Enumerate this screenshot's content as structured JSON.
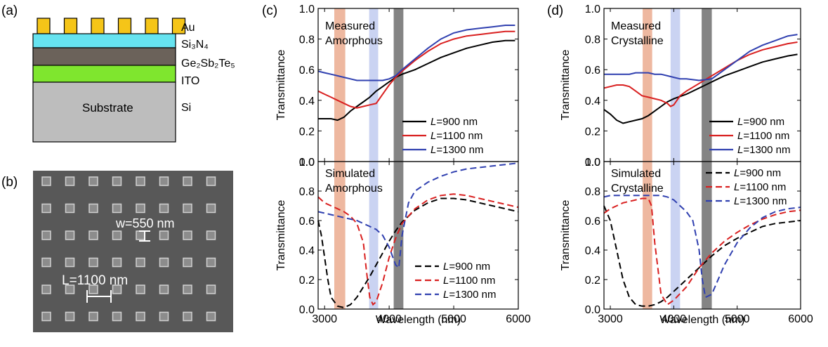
{
  "panel_labels": {
    "a": "(a)",
    "b": "(b)",
    "c": "(c)",
    "d": "(d)"
  },
  "stack": {
    "layers": [
      {
        "label": "Au",
        "color": "#f5c518"
      },
      {
        "label": "Si₃N₄",
        "color": "#66e3f0"
      },
      {
        "label": "Ge₂Sb₂Te₅",
        "color": "#6b625a"
      },
      {
        "label": "ITO",
        "color": "#7fe62e"
      },
      {
        "label": "Si",
        "color": "#bdbdbd"
      }
    ],
    "substrate_text": "Substrate"
  },
  "sem": {
    "w_label": "w=550 nm",
    "l_label": "L=1100 nm",
    "background_color": "#585858",
    "pillar_color": "#a6a6a6"
  },
  "colors": {
    "L900": "#000000",
    "L1100": "#d92020",
    "L1300": "#3040b0",
    "band_orange": "#e8a080",
    "band_blue": "#b8c4ee",
    "band_gray": "#6e6e6e"
  },
  "axes": {
    "xlabel": "Wavelength (nm)",
    "ylabel": "Transmittance",
    "xticks": [
      "3000",
      "4000",
      "5000",
      "6000"
    ],
    "yticks_top": [
      "0.0",
      "0.2",
      "0.4",
      "0.6",
      "0.8",
      "1.0"
    ],
    "yticks_bottom": [
      "0.0",
      "0.2",
      "0.4",
      "0.6",
      "0.8",
      "1.0"
    ]
  },
  "legend_labels": [
    "=900 nm",
    "=1100 nm",
    "=1300 nm"
  ],
  "legend_L": "L",
  "annotations": {
    "c_top": [
      "Measured",
      "Amorphous"
    ],
    "c_bottom": [
      "Simulated",
      "Amorphous"
    ],
    "d_top": [
      "Measured",
      "Crystalline"
    ],
    "d_bottom": [
      "Simulated",
      "Crystalline"
    ]
  },
  "chart_data": [
    {
      "type": "line",
      "panel": "c-measured",
      "xlabel": "",
      "ylabel": "Transmittance",
      "xlim": [
        2900,
        6000
      ],
      "ylim": [
        0,
        1.0
      ],
      "bands": [
        [
          3150,
          3320
        ],
        [
          3690,
          3830
        ],
        [
          4070,
          4220
        ]
      ],
      "series": [
        {
          "name": "L=900 nm",
          "style": "solid",
          "x": [
            2900,
            3000,
            3100,
            3200,
            3300,
            3400,
            3500,
            3600,
            3700,
            3800,
            3900,
            4000,
            4100,
            4200,
            4400,
            4600,
            4800,
            5000,
            5200,
            5400,
            5600,
            5800,
            5950
          ],
          "y": [
            0.28,
            0.28,
            0.28,
            0.27,
            0.29,
            0.33,
            0.36,
            0.39,
            0.42,
            0.46,
            0.49,
            0.52,
            0.55,
            0.57,
            0.6,
            0.64,
            0.68,
            0.71,
            0.74,
            0.76,
            0.78,
            0.79,
            0.79
          ]
        },
        {
          "name": "L=1100 nm",
          "style": "solid",
          "x": [
            2900,
            3000,
            3100,
            3200,
            3300,
            3400,
            3500,
            3600,
            3700,
            3800,
            3900,
            4000,
            4100,
            4200,
            4400,
            4600,
            4800,
            5000,
            5200,
            5400,
            5600,
            5800,
            5950
          ],
          "y": [
            0.46,
            0.44,
            0.42,
            0.4,
            0.38,
            0.36,
            0.35,
            0.36,
            0.37,
            0.38,
            0.44,
            0.5,
            0.55,
            0.59,
            0.66,
            0.72,
            0.77,
            0.8,
            0.82,
            0.83,
            0.84,
            0.85,
            0.85
          ]
        },
        {
          "name": "L=1300 nm",
          "style": "solid",
          "x": [
            2900,
            3000,
            3100,
            3200,
            3300,
            3400,
            3500,
            3600,
            3700,
            3800,
            3900,
            4000,
            4100,
            4200,
            4400,
            4600,
            4800,
            5000,
            5200,
            5400,
            5600,
            5800,
            5950
          ],
          "y": [
            0.59,
            0.58,
            0.57,
            0.56,
            0.55,
            0.54,
            0.53,
            0.53,
            0.53,
            0.53,
            0.53,
            0.54,
            0.56,
            0.6,
            0.67,
            0.74,
            0.8,
            0.84,
            0.86,
            0.87,
            0.88,
            0.89,
            0.89
          ]
        }
      ]
    },
    {
      "type": "line",
      "panel": "c-simulated",
      "xlabel": "Wavelength (nm)",
      "ylabel": "Transmittance",
      "xlim": [
        2900,
        6000
      ],
      "ylim": [
        0,
        1.0
      ],
      "bands": [
        [
          3150,
          3320
        ],
        [
          3690,
          3830
        ],
        [
          4070,
          4220
        ]
      ],
      "series": [
        {
          "name": "L=900 nm",
          "style": "dashed",
          "x": [
            2900,
            2950,
            3000,
            3050,
            3100,
            3200,
            3300,
            3400,
            3500,
            3600,
            3700,
            3800,
            3900,
            4000,
            4100,
            4200,
            4400,
            4600,
            4800,
            5000,
            5200,
            5400,
            5600,
            5800,
            6000
          ],
          "y": [
            0.6,
            0.5,
            0.35,
            0.2,
            0.08,
            0.02,
            0.01,
            0.03,
            0.08,
            0.15,
            0.22,
            0.3,
            0.38,
            0.46,
            0.53,
            0.59,
            0.67,
            0.72,
            0.75,
            0.75,
            0.74,
            0.72,
            0.7,
            0.68,
            0.66
          ]
        },
        {
          "name": "L=1100 nm",
          "style": "dashed",
          "x": [
            2900,
            3000,
            3100,
            3200,
            3300,
            3400,
            3500,
            3600,
            3650,
            3700,
            3750,
            3800,
            3900,
            4000,
            4100,
            4200,
            4400,
            4600,
            4800,
            5000,
            5200,
            5400,
            5600,
            5800,
            6000
          ],
          "y": [
            0.76,
            0.72,
            0.7,
            0.68,
            0.66,
            0.63,
            0.58,
            0.45,
            0.25,
            0.08,
            0.03,
            0.05,
            0.18,
            0.35,
            0.48,
            0.58,
            0.68,
            0.74,
            0.77,
            0.78,
            0.77,
            0.75,
            0.73,
            0.71,
            0.69
          ]
        },
        {
          "name": "L=1300 nm",
          "style": "dashed",
          "x": [
            2900,
            3000,
            3100,
            3200,
            3300,
            3400,
            3500,
            3600,
            3700,
            3800,
            3900,
            4000,
            4100,
            4150,
            4200,
            4300,
            4400,
            4600,
            4800,
            5000,
            5200,
            5400,
            5600,
            5800,
            6000
          ],
          "y": [
            0.66,
            0.65,
            0.64,
            0.63,
            0.62,
            0.61,
            0.6,
            0.58,
            0.56,
            0.54,
            0.5,
            0.42,
            0.3,
            0.28,
            0.5,
            0.72,
            0.8,
            0.86,
            0.9,
            0.93,
            0.95,
            0.96,
            0.97,
            0.98,
            0.99
          ]
        }
      ]
    },
    {
      "type": "line",
      "panel": "d-measured",
      "xlabel": "",
      "ylabel": "Transmittance",
      "xlim": [
        2900,
        6000
      ],
      "ylim": [
        0,
        1.0
      ],
      "bands": [
        [
          3510,
          3660
        ],
        [
          3950,
          4100
        ],
        [
          4440,
          4600
        ]
      ],
      "series": [
        {
          "name": "L=900 nm",
          "style": "solid",
          "x": [
            2900,
            3000,
            3100,
            3200,
            3300,
            3400,
            3500,
            3600,
            3700,
            3800,
            3900,
            4000,
            4200,
            4400,
            4600,
            4800,
            5000,
            5200,
            5400,
            5600,
            5800,
            5950
          ],
          "y": [
            0.34,
            0.31,
            0.27,
            0.25,
            0.26,
            0.27,
            0.28,
            0.3,
            0.33,
            0.36,
            0.39,
            0.41,
            0.44,
            0.48,
            0.52,
            0.56,
            0.59,
            0.62,
            0.65,
            0.67,
            0.69,
            0.7
          ]
        },
        {
          "name": "L=1100 nm",
          "style": "solid",
          "x": [
            2900,
            3000,
            3100,
            3200,
            3300,
            3400,
            3500,
            3600,
            3700,
            3800,
            3900,
            3950,
            4000,
            4100,
            4200,
            4400,
            4600,
            4800,
            5000,
            5200,
            5400,
            5600,
            5800,
            5950
          ],
          "y": [
            0.48,
            0.49,
            0.5,
            0.5,
            0.49,
            0.46,
            0.43,
            0.42,
            0.41,
            0.4,
            0.38,
            0.36,
            0.37,
            0.43,
            0.46,
            0.51,
            0.56,
            0.61,
            0.66,
            0.7,
            0.73,
            0.75,
            0.77,
            0.78
          ]
        },
        {
          "name": "L=1300 nm",
          "style": "solid",
          "x": [
            2900,
            3000,
            3100,
            3200,
            3300,
            3400,
            3500,
            3600,
            3700,
            3800,
            3900,
            4000,
            4100,
            4200,
            4400,
            4600,
            4800,
            5000,
            5200,
            5400,
            5600,
            5800,
            5950
          ],
          "y": [
            0.57,
            0.57,
            0.57,
            0.57,
            0.57,
            0.58,
            0.58,
            0.58,
            0.57,
            0.57,
            0.56,
            0.55,
            0.54,
            0.54,
            0.53,
            0.54,
            0.6,
            0.66,
            0.72,
            0.76,
            0.79,
            0.82,
            0.83
          ]
        }
      ]
    },
    {
      "type": "line",
      "panel": "d-simulated",
      "xlabel": "Wavelength (nm)",
      "ylabel": "Transmittance",
      "xlim": [
        2900,
        6000
      ],
      "ylim": [
        0,
        1.0
      ],
      "bands": [
        [
          3510,
          3660
        ],
        [
          3950,
          4100
        ],
        [
          4440,
          4600
        ]
      ],
      "series": [
        {
          "name": "L=900 nm",
          "style": "dashed",
          "x": [
            2900,
            3000,
            3100,
            3200,
            3300,
            3400,
            3500,
            3600,
            3700,
            3800,
            3900,
            4000,
            4200,
            4400,
            4600,
            4800,
            5000,
            5200,
            5400,
            5600,
            5800,
            6000
          ],
          "y": [
            0.7,
            0.6,
            0.4,
            0.2,
            0.08,
            0.03,
            0.02,
            0.02,
            0.03,
            0.05,
            0.08,
            0.12,
            0.2,
            0.28,
            0.36,
            0.43,
            0.48,
            0.52,
            0.56,
            0.58,
            0.59,
            0.6
          ]
        },
        {
          "name": "L=1100 nm",
          "style": "dashed",
          "x": [
            2900,
            3000,
            3100,
            3200,
            3300,
            3400,
            3500,
            3600,
            3650,
            3700,
            3800,
            3900,
            4000,
            4200,
            4400,
            4600,
            4800,
            5000,
            5200,
            5400,
            5600,
            5800,
            6000
          ],
          "y": [
            0.65,
            0.68,
            0.7,
            0.72,
            0.73,
            0.74,
            0.75,
            0.75,
            0.7,
            0.45,
            0.1,
            0.03,
            0.06,
            0.15,
            0.28,
            0.38,
            0.46,
            0.52,
            0.57,
            0.61,
            0.64,
            0.66,
            0.67
          ]
        },
        {
          "name": "L=1300 nm",
          "style": "dashed",
          "x": [
            2900,
            3000,
            3100,
            3200,
            3300,
            3400,
            3500,
            3600,
            3700,
            3800,
            3900,
            4000,
            4100,
            4200,
            4300,
            4400,
            4450,
            4500,
            4600,
            4800,
            5000,
            5200,
            5400,
            5600,
            5800,
            6000
          ],
          "y": [
            0.76,
            0.77,
            0.77,
            0.77,
            0.77,
            0.77,
            0.77,
            0.77,
            0.77,
            0.77,
            0.76,
            0.74,
            0.7,
            0.66,
            0.6,
            0.4,
            0.2,
            0.08,
            0.1,
            0.3,
            0.45,
            0.55,
            0.62,
            0.66,
            0.68,
            0.69
          ]
        }
      ]
    }
  ]
}
